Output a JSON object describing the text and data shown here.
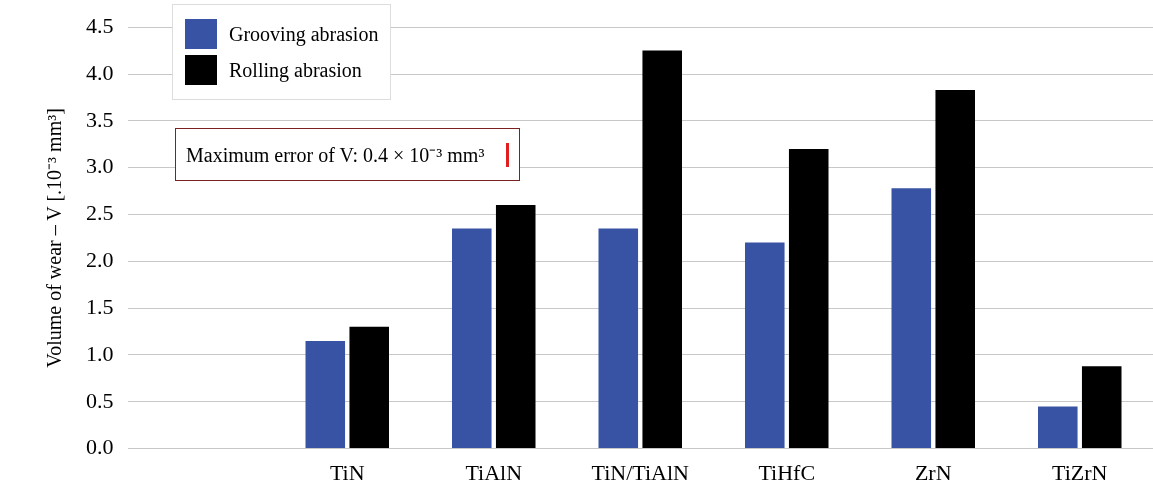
{
  "chart_data": {
    "type": "bar",
    "categories": [
      null,
      "TiN",
      "TiAlN",
      "TiN/TiAlN",
      "TiHfC",
      "ZrN",
      "TiZrN"
    ],
    "series": [
      {
        "name": "Grooving abrasion",
        "color": "#3953a4",
        "values": [
          null,
          1.15,
          2.35,
          2.35,
          2.2,
          2.78,
          0.45
        ]
      },
      {
        "name": "Rolling abrasion",
        "color": "#000000",
        "values": [
          null,
          1.3,
          2.6,
          4.25,
          3.2,
          3.83,
          0.88
        ]
      }
    ],
    "ylabel": "Volume of wear – V [.10⁻³ mm³]",
    "ylim": [
      0,
      4.5
    ],
    "yticks": [
      {
        "value": 0,
        "label": "0.0"
      },
      0.5,
      {
        "value": 1,
        "label": "1.0"
      },
      1.5,
      {
        "value": 2,
        "label": "2.0"
      },
      2.5,
      {
        "value": 3,
        "label": "3.0"
      },
      3.5,
      {
        "value": 4,
        "label": "4.0"
      },
      4.5
    ],
    "annotations": [
      "Maximum error of V: 0.4 × 10⁻³ mm³"
    ],
    "grid": "y",
    "legend": "top left"
  }
}
